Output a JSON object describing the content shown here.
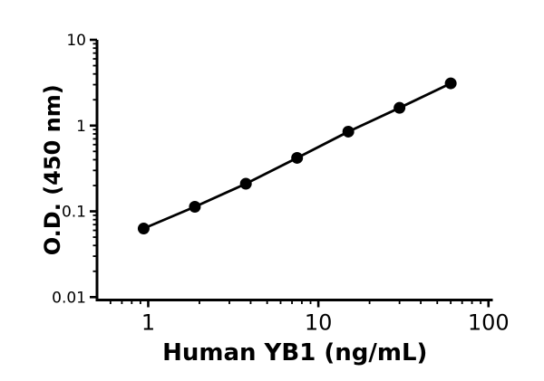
{
  "figure": {
    "description": "ELISA standard curve plot, black on white, log-log axes"
  },
  "chart_data": {
    "type": "line",
    "title": "",
    "xlabel": "Human YB1 (ng/mL)",
    "ylabel": "O.D. (450 nm)",
    "x_scale": "log",
    "y_scale": "log",
    "x": [
      0.94,
      1.88,
      3.75,
      7.5,
      15,
      30,
      60
    ],
    "y": [
      0.063,
      0.113,
      0.21,
      0.42,
      0.85,
      1.61,
      3.11
    ],
    "x_major_ticks": [
      1,
      10,
      100
    ],
    "y_major_ticks": [
      0.01,
      0.1,
      1,
      10
    ],
    "xlim": [
      0.5,
      106
    ],
    "ylim": [
      0.00925,
      10
    ],
    "grid": false,
    "legend": "none",
    "marker": "filled-circle",
    "marker_color": "#000000",
    "line_color": "#000000",
    "axis_color": "#000000",
    "background": "#ffffff"
  }
}
